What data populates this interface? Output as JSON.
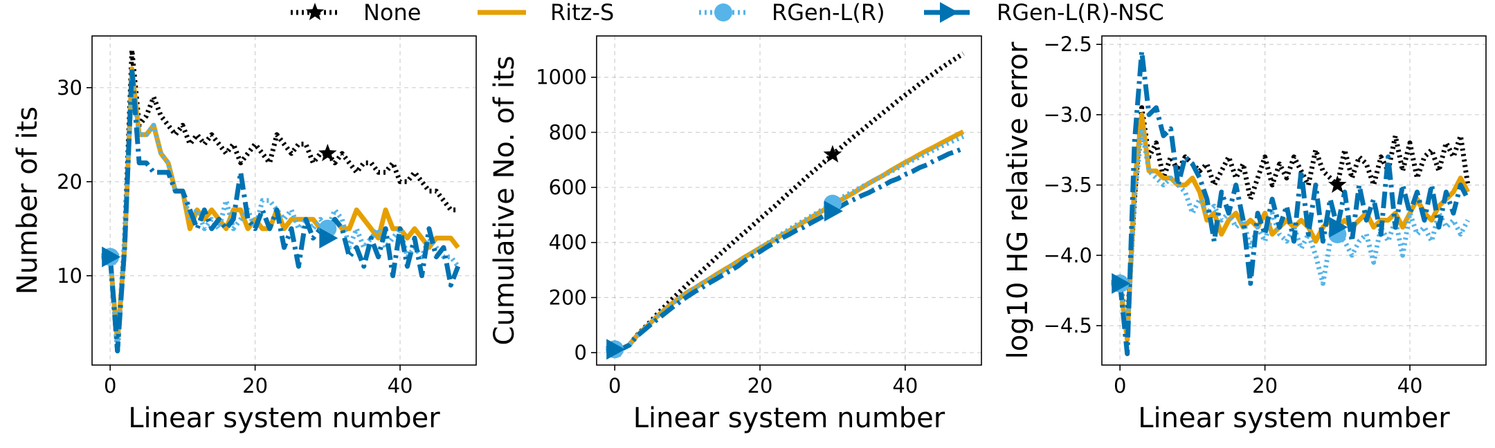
{
  "legend": [
    {
      "key": "none",
      "label": "None"
    },
    {
      "key": "ritz",
      "label": "Ritz-S"
    },
    {
      "key": "rgen",
      "label": "RGen-L(R)"
    },
    {
      "key": "rgen_nsc",
      "label": "RGen-L(R)-NSC"
    }
  ],
  "styles": {
    "none": {
      "color": "#000000",
      "dash": "3 5",
      "marker": "star"
    },
    "ritz": {
      "color": "#e69f00",
      "dash": "",
      "marker": "none"
    },
    "rgen": {
      "color": "#56b4e9",
      "dash": "3 5",
      "marker": "circle"
    },
    "rgen_nsc": {
      "color": "#0072b2",
      "dash": "24 7 4 7",
      "marker": "triangle-right"
    }
  },
  "chart_data": [
    {
      "type": "line",
      "title": "",
      "xlabel": "Linear system number",
      "ylabel": "Number of its",
      "xlim": [
        -2.5,
        50.5
      ],
      "ylim": [
        0.5,
        35.5
      ],
      "xticks": [
        0,
        20,
        40
      ],
      "yticks": [
        10,
        20,
        30
      ],
      "ytick_labels": [
        "10",
        "20",
        "30"
      ],
      "grid": true,
      "markers_at": [
        0,
        30
      ],
      "x": [
        0,
        1,
        2,
        3,
        4,
        5,
        6,
        7,
        8,
        9,
        10,
        11,
        12,
        13,
        14,
        15,
        16,
        17,
        18,
        19,
        20,
        21,
        22,
        23,
        24,
        25,
        26,
        27,
        28,
        29,
        30,
        31,
        32,
        33,
        34,
        35,
        36,
        37,
        38,
        39,
        40,
        41,
        42,
        43,
        44,
        45,
        46,
        47,
        48
      ],
      "series": [
        {
          "key": "none",
          "name": "None",
          "values": [
            12,
            2,
            14,
            34,
            26,
            27,
            29,
            27,
            26,
            25,
            26,
            24,
            25,
            24,
            25,
            24,
            23,
            24,
            22,
            23,
            24,
            23,
            22,
            25,
            24,
            23,
            24,
            24,
            22,
            23,
            23,
            22,
            23,
            22,
            21,
            22,
            22,
            21,
            21,
            22,
            20,
            20,
            21,
            20,
            19,
            19,
            18,
            17,
            17
          ]
        },
        {
          "key": "ritz",
          "name": "Ritz-S",
          "values": [
            12,
            3,
            13,
            32,
            25,
            25,
            26,
            23,
            22,
            19,
            19,
            15,
            17,
            16,
            17,
            16,
            15,
            17,
            17,
            15,
            16,
            15,
            15,
            17,
            15,
            16,
            16,
            16,
            16,
            15,
            15,
            16,
            15,
            15,
            17,
            16,
            15,
            14,
            17,
            15,
            15,
            14,
            15,
            14,
            13,
            14,
            14,
            14,
            13
          ]
        },
        {
          "key": "rgen",
          "name": "RGen-L(R)",
          "values": [
            12,
            2,
            14,
            31,
            25,
            25,
            26,
            23,
            22,
            19,
            19,
            16,
            17,
            15,
            16,
            15,
            18,
            15,
            16,
            17,
            15,
            18,
            18,
            17,
            16,
            17,
            15,
            16,
            15,
            16,
            15,
            17,
            16,
            13,
            15,
            13,
            14,
            15,
            13,
            14,
            15,
            12,
            13,
            12,
            14,
            13,
            12,
            12,
            11
          ]
        },
        {
          "key": "rgen_nsc",
          "name": "RGen-L(R)-NSC",
          "values": [
            12,
            2,
            13,
            32,
            22,
            22,
            21,
            21,
            21,
            19,
            19,
            17,
            15,
            17,
            15,
            16,
            15,
            16,
            21,
            16,
            15,
            17,
            15,
            17,
            13,
            15,
            11,
            16,
            14,
            15,
            14,
            16,
            15,
            12,
            13,
            11,
            14,
            12,
            15,
            10,
            15,
            11,
            14,
            10,
            15,
            12,
            13,
            9,
            11
          ]
        }
      ]
    },
    {
      "type": "line",
      "title": "",
      "xlabel": "Linear system number",
      "ylabel": "Cumulative No. of its",
      "xlim": [
        -2.5,
        50.5
      ],
      "ylim": [
        -45,
        1150
      ],
      "xticks": [
        0,
        20,
        40
      ],
      "yticks": [
        0,
        200,
        400,
        600,
        800,
        1000
      ],
      "ytick_labels": [
        "0",
        "200",
        "400",
        "600",
        "800",
        "1000"
      ],
      "grid": true,
      "markers_at": [
        0,
        30
      ],
      "x": [
        0,
        1,
        2,
        3,
        4,
        5,
        6,
        7,
        8,
        9,
        10,
        11,
        12,
        13,
        14,
        15,
        16,
        17,
        18,
        19,
        20,
        21,
        22,
        23,
        24,
        25,
        26,
        27,
        28,
        29,
        30,
        31,
        32,
        33,
        34,
        35,
        36,
        37,
        38,
        39,
        40,
        41,
        42,
        43,
        44,
        45,
        46,
        47,
        48
      ],
      "series": [
        {
          "key": "none",
          "name": "None",
          "values": [
            12,
            14,
            28,
            62,
            88,
            115,
            144,
            171,
            197,
            222,
            248,
            272,
            297,
            321,
            346,
            370,
            393,
            417,
            439,
            462,
            486,
            509,
            531,
            556,
            580,
            603,
            627,
            651,
            673,
            696,
            719,
            741,
            764,
            786,
            807,
            829,
            851,
            872,
            893,
            915,
            935,
            955,
            976,
            996,
            1015,
            1034,
            1052,
            1069,
            1086
          ]
        },
        {
          "key": "ritz",
          "name": "Ritz-S",
          "values": [
            12,
            15,
            28,
            60,
            85,
            110,
            136,
            159,
            181,
            200,
            219,
            234,
            251,
            267,
            284,
            300,
            315,
            332,
            349,
            364,
            380,
            395,
            410,
            427,
            442,
            458,
            474,
            490,
            506,
            521,
            536,
            552,
            567,
            582,
            599,
            615,
            630,
            644,
            661,
            676,
            691,
            705,
            720,
            734,
            747,
            761,
            775,
            789,
            802
          ]
        },
        {
          "key": "rgen",
          "name": "RGen-L(R)",
          "values": [
            12,
            14,
            28,
            59,
            84,
            109,
            135,
            158,
            180,
            199,
            218,
            234,
            251,
            266,
            282,
            297,
            315,
            330,
            346,
            363,
            378,
            396,
            414,
            431,
            447,
            464,
            479,
            495,
            510,
            526,
            541,
            558,
            574,
            587,
            602,
            615,
            629,
            644,
            657,
            671,
            686,
            698,
            711,
            723,
            737,
            750,
            762,
            774,
            785
          ]
        },
        {
          "key": "rgen_nsc",
          "name": "RGen-L(R)-NSC",
          "values": [
            12,
            14,
            27,
            59,
            81,
            103,
            124,
            145,
            166,
            185,
            204,
            221,
            236,
            253,
            268,
            284,
            299,
            315,
            336,
            352,
            367,
            384,
            399,
            416,
            429,
            444,
            455,
            471,
            485,
            500,
            514,
            530,
            545,
            557,
            570,
            581,
            595,
            607,
            622,
            632,
            647,
            658,
            672,
            682,
            697,
            709,
            722,
            731,
            742
          ]
        }
      ]
    },
    {
      "type": "line",
      "title": "",
      "xlabel": "Linear system number",
      "ylabel": "log10 HG relative error",
      "xlim": [
        -2.5,
        50.5
      ],
      "ylim": [
        -4.78,
        -2.44
      ],
      "xticks": [
        0,
        20,
        40
      ],
      "yticks": [
        -4.5,
        -4.0,
        -3.5,
        -3.0,
        -2.5
      ],
      "ytick_labels": [
        "−4.5",
        "−4.0",
        "−3.5",
        "−3.0",
        "−2.5"
      ],
      "grid": true,
      "markers_at": [
        0,
        30
      ],
      "x": [
        0,
        1,
        2,
        3,
        4,
        5,
        6,
        7,
        8,
        9,
        10,
        11,
        12,
        13,
        14,
        15,
        16,
        17,
        18,
        19,
        20,
        21,
        22,
        23,
        24,
        25,
        26,
        27,
        28,
        29,
        30,
        31,
        32,
        33,
        34,
        35,
        36,
        37,
        38,
        39,
        40,
        41,
        42,
        43,
        44,
        45,
        46,
        47,
        48
      ],
      "series": [
        {
          "key": "none",
          "name": "None",
          "values": [
            -4.2,
            -4.5,
            -3.6,
            -2.95,
            -3.3,
            -3.2,
            -3.45,
            -3.3,
            -3.4,
            -3.3,
            -3.35,
            -3.4,
            -3.35,
            -3.5,
            -3.4,
            -3.3,
            -3.45,
            -3.35,
            -3.6,
            -3.45,
            -3.3,
            -3.5,
            -3.35,
            -3.45,
            -3.3,
            -3.4,
            -3.5,
            -3.25,
            -3.4,
            -3.45,
            -3.5,
            -3.25,
            -3.45,
            -3.3,
            -3.35,
            -3.5,
            -3.3,
            -3.4,
            -3.15,
            -3.4,
            -3.2,
            -3.45,
            -3.3,
            -3.25,
            -3.4,
            -3.2,
            -3.3,
            -3.15,
            -3.5
          ]
        },
        {
          "key": "ritz",
          "name": "Ritz-S",
          "values": [
            -4.2,
            -4.6,
            -3.5,
            -3.0,
            -3.4,
            -3.4,
            -3.45,
            -3.45,
            -3.5,
            -3.5,
            -3.45,
            -3.55,
            -3.75,
            -3.7,
            -3.85,
            -3.75,
            -3.7,
            -3.8,
            -3.75,
            -3.8,
            -3.7,
            -3.85,
            -3.8,
            -3.75,
            -3.8,
            -3.75,
            -3.8,
            -3.9,
            -3.8,
            -3.75,
            -3.8,
            -3.75,
            -3.8,
            -3.75,
            -3.7,
            -3.8,
            -3.75,
            -3.75,
            -3.7,
            -3.8,
            -3.7,
            -3.6,
            -3.7,
            -3.75,
            -3.65,
            -3.6,
            -3.55,
            -3.45,
            -3.55
          ]
        },
        {
          "key": "rgen",
          "name": "RGen-L(R)",
          "values": [
            -4.2,
            -4.55,
            -3.6,
            -3.1,
            -3.4,
            -3.45,
            -3.5,
            -3.45,
            -3.5,
            -3.55,
            -3.7,
            -3.6,
            -3.7,
            -3.65,
            -3.75,
            -3.7,
            -3.8,
            -3.75,
            -3.95,
            -3.8,
            -3.9,
            -3.7,
            -3.85,
            -3.9,
            -3.8,
            -3.95,
            -3.85,
            -4.0,
            -4.2,
            -3.9,
            -3.85,
            -3.9,
            -4.0,
            -3.9,
            -3.85,
            -4.05,
            -3.8,
            -3.9,
            -3.75,
            -4.0,
            -3.7,
            -3.85,
            -3.8,
            -3.9,
            -3.7,
            -3.8,
            -3.75,
            -3.85,
            -3.75
          ]
        },
        {
          "key": "rgen_nsc",
          "name": "RGen-L(R)-NSC",
          "values": [
            -4.2,
            -4.7,
            -3.2,
            -2.55,
            -3.0,
            -2.95,
            -3.15,
            -3.1,
            -3.5,
            -3.3,
            -3.35,
            -3.45,
            -3.6,
            -3.9,
            -3.55,
            -3.7,
            -3.5,
            -3.75,
            -4.2,
            -3.7,
            -3.85,
            -3.6,
            -3.8,
            -3.65,
            -3.9,
            -3.4,
            -3.85,
            -3.5,
            -3.9,
            -3.6,
            -3.8,
            -3.55,
            -3.9,
            -3.5,
            -3.75,
            -3.6,
            -3.85,
            -3.3,
            -3.8,
            -3.5,
            -3.7,
            -3.55,
            -3.75,
            -3.5,
            -3.8,
            -3.55,
            -3.7,
            -3.5,
            -3.6
          ]
        }
      ]
    }
  ]
}
